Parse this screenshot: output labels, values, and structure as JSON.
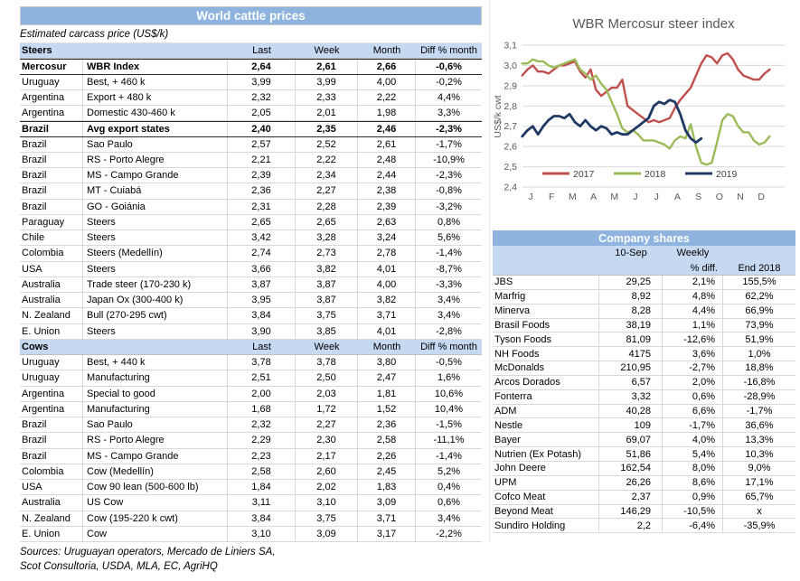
{
  "left_table": {
    "title": "World cattle prices",
    "subtitle": "Estimated carcass price (US$/k)",
    "columns": [
      "Last",
      "Week",
      "Month",
      "Diff % month"
    ],
    "sections": [
      {
        "name": "Steers",
        "rows": [
          {
            "country": "Mercosur",
            "desc": "WBR Index",
            "last": "2,64",
            "week": "2,61",
            "month": "2,66",
            "diff": "-0,6%",
            "bold": true
          },
          {
            "country": "Uruguay",
            "desc": "Best, + 460 k",
            "last": "3,99",
            "week": "3,99",
            "month": "4,00",
            "diff": "-0,2%"
          },
          {
            "country": "Argentina",
            "desc": "Export + 480 k",
            "last": "2,32",
            "week": "2,33",
            "month": "2,22",
            "diff": "4,4%"
          },
          {
            "country": "Argentina",
            "desc": "Domestic 430-460 k",
            "last": "2,05",
            "week": "2,01",
            "month": "1,98",
            "diff": "3,3%"
          },
          {
            "country": "Brazil",
            "desc": "Avg export states",
            "last": "2,40",
            "week": "2,35",
            "month": "2,46",
            "diff": "-2,3%",
            "bold": true
          },
          {
            "country": "Brazil",
            "desc": "Sao Paulo",
            "last": "2,57",
            "week": "2,52",
            "month": "2,61",
            "diff": "-1,7%"
          },
          {
            "country": "Brazil",
            "desc": "RS - Porto Alegre",
            "last": "2,21",
            "week": "2,22",
            "month": "2,48",
            "diff": "-10,9%"
          },
          {
            "country": "Brazil",
            "desc": "MS - Campo Grande",
            "last": "2,39",
            "week": "2,34",
            "month": "2,44",
            "diff": "-2,3%"
          },
          {
            "country": "Brazil",
            "desc": "MT - Cuiabá",
            "last": "2,36",
            "week": "2,27",
            "month": "2,38",
            "diff": "-0,8%"
          },
          {
            "country": "Brazil",
            "desc": "GO - Goiánia",
            "last": "2,31",
            "week": "2,28",
            "month": "2,39",
            "diff": "-3,2%"
          },
          {
            "country": "Paraguay",
            "desc": "Steers",
            "last": "2,65",
            "week": "2,65",
            "month": "2,63",
            "diff": "0,8%"
          },
          {
            "country": "Chile",
            "desc": "Steers",
            "last": "3,42",
            "week": "3,28",
            "month": "3,24",
            "diff": "5,6%"
          },
          {
            "country": "Colombia",
            "desc": "Steers (Medellín)",
            "last": "2,74",
            "week": "2,73",
            "month": "2,78",
            "diff": "-1,4%"
          },
          {
            "country": "USA",
            "desc": "Steers",
            "last": "3,66",
            "week": "3,82",
            "month": "4,01",
            "diff": "-8,7%"
          },
          {
            "country": "Australia",
            "desc": "Trade steer (170-230 k)",
            "last": "3,87",
            "week": "3,87",
            "month": "4,00",
            "diff": "-3,3%"
          },
          {
            "country": "Australia",
            "desc": "Japan Ox (300-400 k)",
            "last": "3,95",
            "week": "3,87",
            "month": "3,82",
            "diff": "3,4%"
          },
          {
            "country": "N. Zealand",
            "desc": "Bull (270-295 cwt)",
            "last": "3,84",
            "week": "3,75",
            "month": "3,71",
            "diff": "3,4%"
          },
          {
            "country": "E. Union",
            "desc": "Steers",
            "last": "3,90",
            "week": "3,85",
            "month": "4,01",
            "diff": "-2,8%"
          }
        ]
      },
      {
        "name": "Cows",
        "rows": [
          {
            "country": "Uruguay",
            "desc": "Best, + 440 k",
            "last": "3,78",
            "week": "3,78",
            "month": "3,80",
            "diff": "-0,5%"
          },
          {
            "country": "Uruguay",
            "desc": "Manufacturing",
            "last": "2,51",
            "week": "2,50",
            "month": "2,47",
            "diff": "1,6%"
          },
          {
            "country": "Argentina",
            "desc": "Special to good",
            "last": "2,00",
            "week": "2,03",
            "month": "1,81",
            "diff": "10,6%"
          },
          {
            "country": "Argentina",
            "desc": "Manufacturing",
            "last": "1,68",
            "week": "1,72",
            "month": "1,52",
            "diff": "10,4%"
          },
          {
            "country": "Brazil",
            "desc": "Sao Paulo",
            "last": "2,32",
            "week": "2,27",
            "month": "2,36",
            "diff": "-1,5%"
          },
          {
            "country": "Brazil",
            "desc": "RS - Porto Alegre",
            "last": "2,29",
            "week": "2,30",
            "month": "2,58",
            "diff": "-11,1%"
          },
          {
            "country": "Brazil",
            "desc": "MS - Campo Grande",
            "last": "2,23",
            "week": "2,17",
            "month": "2,26",
            "diff": "-1,4%"
          },
          {
            "country": "Colombia",
            "desc": "Cow (Medellín)",
            "last": "2,58",
            "week": "2,60",
            "month": "2,45",
            "diff": "5,2%"
          },
          {
            "country": "USA",
            "desc": "Cow 90 lean (500-600 lb)",
            "last": "1,84",
            "week": "2,02",
            "month": "1,83",
            "diff": "0,4%"
          },
          {
            "country": "Australia",
            "desc": "US Cow",
            "last": "3,11",
            "week": "3,10",
            "month": "3,09",
            "diff": "0,6%"
          },
          {
            "country": "N. Zealand",
            "desc": "Cow (195-220 k cwt)",
            "last": "3,84",
            "week": "3,75",
            "month": "3,71",
            "diff": "3,4%"
          },
          {
            "country": "E. Union",
            "desc": "Cow",
            "last": "3,10",
            "week": "3,09",
            "month": "3,17",
            "diff": "-2,2%"
          }
        ]
      }
    ],
    "sources": [
      "Sources: Uruguayan operators, Mercado de Liniers SA,",
      "Scot Consultoria, USDA, MLA, EC, AgriHQ"
    ]
  },
  "chart_data": {
    "type": "line",
    "title": "WBR Mercosur steer index",
    "ylabel": "US$/k cwt",
    "ylim": [
      2.4,
      3.1
    ],
    "ytick_labels": [
      "3,1",
      "3,0",
      "2,9",
      "2,8",
      "2,7",
      "2,6",
      "2,5",
      "2,4"
    ],
    "ytick_values": [
      3.1,
      3.0,
      2.9,
      2.8,
      2.7,
      2.6,
      2.5,
      2.4
    ],
    "xticklabels": [
      "J",
      "F",
      "M",
      "A",
      "M",
      "J",
      "J",
      "A",
      "S",
      "O",
      "N",
      "D"
    ],
    "grid": true,
    "legend_position": "bottom-left-inside",
    "series": [
      {
        "name": "2017",
        "color": "#C0504D",
        "values": [
          2.95,
          2.98,
          3.0,
          2.97,
          2.97,
          2.96,
          2.98,
          3.0,
          3.0,
          3.01,
          3.02,
          2.97,
          2.94,
          2.98,
          2.88,
          2.85,
          2.87,
          2.89,
          2.89,
          2.93,
          2.8,
          2.78,
          2.76,
          2.74,
          2.72,
          2.73,
          2.72,
          2.73,
          2.74,
          2.79,
          2.83,
          2.86,
          2.89,
          2.95,
          3.01,
          3.05,
          3.04,
          3.01,
          3.05,
          3.06,
          3.03,
          2.98,
          2.95,
          2.94,
          2.93,
          2.93,
          2.96,
          2.98
        ]
      },
      {
        "name": "2018",
        "color": "#9BBB59",
        "values": [
          3.01,
          3.01,
          3.03,
          3.02,
          3.02,
          3.0,
          2.99,
          3.0,
          3.01,
          3.02,
          3.03,
          2.98,
          2.96,
          2.93,
          2.95,
          2.91,
          2.88,
          2.82,
          2.76,
          2.69,
          2.67,
          2.68,
          2.66,
          2.63,
          2.63,
          2.63,
          2.62,
          2.61,
          2.59,
          2.63,
          2.65,
          2.64,
          2.71,
          2.6,
          2.52,
          2.51,
          2.52,
          2.62,
          2.73,
          2.76,
          2.75,
          2.7,
          2.67,
          2.67,
          2.63,
          2.61,
          2.62,
          2.65
        ]
      },
      {
        "name": "2019",
        "color": "#1F3864",
        "values": [
          2.65,
          2.68,
          2.7,
          2.66,
          2.7,
          2.73,
          2.75,
          2.75,
          2.74,
          2.76,
          2.72,
          2.7,
          2.73,
          2.7,
          2.68,
          2.7,
          2.69,
          2.66,
          2.67,
          2.66,
          2.66,
          2.68,
          2.7,
          2.72,
          2.74,
          2.8,
          2.82,
          2.81,
          2.83,
          2.82,
          2.76,
          2.68,
          2.64,
          2.62,
          2.64
        ]
      }
    ]
  },
  "company_table": {
    "title": "Company shares",
    "header": {
      "date": "10-Sep",
      "weekly_line1": "Weekly",
      "weekly_line2": "% diff.",
      "end": "End 2018"
    },
    "rows": [
      {
        "name": "JBS",
        "price": "29,25",
        "weekly": "2,1%",
        "end": "155,5%"
      },
      {
        "name": "Marfrig",
        "price": "8,92",
        "weekly": "4,8%",
        "end": "62,2%"
      },
      {
        "name": "Minerva",
        "price": "8,28",
        "weekly": "4,4%",
        "end": "66,9%"
      },
      {
        "name": "Brasil Foods",
        "price": "38,19",
        "weekly": "1,1%",
        "end": "73,9%"
      },
      {
        "name": "Tyson Foods",
        "price": "81,09",
        "weekly": "-12,6%",
        "end": "51,9%"
      },
      {
        "name": "NH Foods",
        "price": "4175",
        "weekly": "3,6%",
        "end": "1,0%"
      },
      {
        "name": "McDonalds",
        "price": "210,95",
        "weekly": "-2,7%",
        "end": "18,8%"
      },
      {
        "name": "Arcos Dorados",
        "price": "6,57",
        "weekly": "2,0%",
        "end": "-16,8%"
      },
      {
        "name": "Fonterra",
        "price": "3,32",
        "weekly": "0,6%",
        "end": "-28,9%"
      },
      {
        "name": "ADM",
        "price": "40,28",
        "weekly": "6,6%",
        "end": "-1,7%"
      },
      {
        "name": "Nestle",
        "price": "109",
        "weekly": "-1,7%",
        "end": "36,6%"
      },
      {
        "name": "Bayer",
        "price": "69,07",
        "weekly": "4,0%",
        "end": "13,3%"
      },
      {
        "name": "Nutrien (Ex Potash)",
        "price": "51,86",
        "weekly": "5,4%",
        "end": "10,3%"
      },
      {
        "name": "John Deere",
        "price": "162,54",
        "weekly": "8,0%",
        "end": "9,0%"
      },
      {
        "name": "UPM",
        "price": "26,26",
        "weekly": "8,6%",
        "end": "17,1%"
      },
      {
        "name": "Cofco Meat",
        "price": "2,37",
        "weekly": "0,9%",
        "end": "65,7%"
      },
      {
        "name": "Beyond Meat",
        "price": "146,29",
        "weekly": "-10,5%",
        "end": "x"
      },
      {
        "name": "Sundiro Holding",
        "price": "2,2",
        "weekly": "-6,4%",
        "end": "-35,9%"
      }
    ]
  }
}
